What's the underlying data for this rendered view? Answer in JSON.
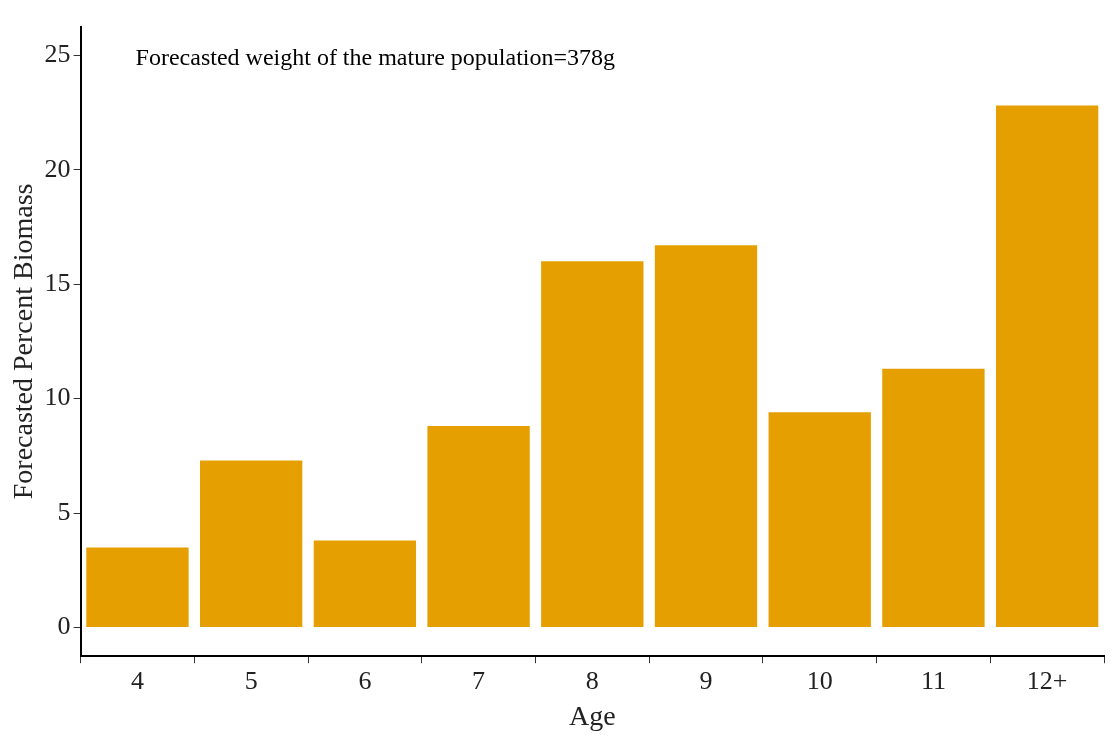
{
  "chart_data": {
    "type": "bar",
    "xlabel": "Age",
    "ylabel": "Forecasted Percent Biomass",
    "categories": [
      "4",
      "5",
      "6",
      "7",
      "8",
      "9",
      "10",
      "11",
      "12+"
    ],
    "values": [
      3.5,
      7.3,
      3.8,
      8.8,
      16.0,
      16.7,
      9.4,
      11.3,
      22.8
    ],
    "color": "#e69f00",
    "ylim": [
      -1.25,
      26.25
    ],
    "yticks": [
      0,
      5,
      10,
      15,
      20,
      25
    ],
    "grid": false,
    "annotations": [
      "Forecasted weight of the mature population=378g"
    ]
  }
}
